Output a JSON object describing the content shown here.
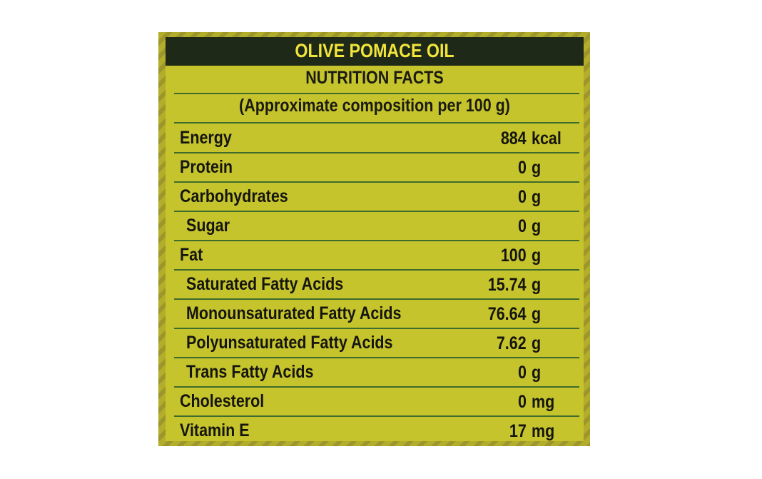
{
  "title": "OLIVE POMACE OIL",
  "subtitle": "NUTRITION FACTS",
  "basis": "(Approximate composition per 100 g)",
  "rows": [
    {
      "label": "Energy",
      "value": "884",
      "unit": "kcal",
      "indent": false
    },
    {
      "label": "Protein",
      "value": "0",
      "unit": "g",
      "indent": false
    },
    {
      "label": "Carbohydrates",
      "value": "0",
      "unit": "g",
      "indent": false
    },
    {
      "label": "Sugar",
      "value": "0",
      "unit": "g",
      "indent": true
    },
    {
      "label": "Fat",
      "value": "100",
      "unit": "g",
      "indent": false
    },
    {
      "label": "Saturated Fatty Acids",
      "value": "15.74",
      "unit": "g",
      "indent": true
    },
    {
      "label": "Monounsaturated Fatty Acids",
      "value": "76.64",
      "unit": "g",
      "indent": true
    },
    {
      "label": "Polyunsaturated Fatty Acids",
      "value": "7.62",
      "unit": "g",
      "indent": true
    },
    {
      "label": "Trans Fatty Acids",
      "value": "0",
      "unit": "g",
      "indent": true
    },
    {
      "label": "Cholesterol",
      "value": "0",
      "unit": "mg",
      "indent": false
    },
    {
      "label": "Vitamin E",
      "value": "17",
      "unit": "mg",
      "indent": false
    }
  ],
  "colors": {
    "panel": "#c6c42c",
    "header": "#1e2918",
    "title": "#f2e63a",
    "rule": "#3f6b2c"
  }
}
